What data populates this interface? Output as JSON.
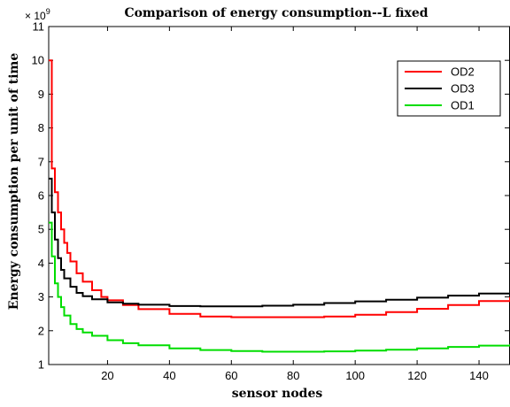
{
  "chart_data": {
    "type": "line",
    "title": "Comparison of energy consumption--L fixed",
    "xlabel": "sensor nodes",
    "ylabel": "Energy consumption per unit of time",
    "y_exponent_label": "× 10",
    "y_exponent_power": "9",
    "xlim": [
      1,
      150
    ],
    "ylim": [
      1,
      11
    ],
    "x_ticks": [
      20,
      40,
      60,
      80,
      100,
      120,
      140
    ],
    "x_tick_labels": [
      "20",
      "40",
      "60",
      "80",
      "100",
      "120",
      "140"
    ],
    "y_ticks": [
      1,
      2,
      3,
      4,
      5,
      6,
      7,
      8,
      9,
      10,
      11
    ],
    "y_tick_labels": [
      "1",
      "2",
      "3",
      "4",
      "5",
      "6",
      "7",
      "8",
      "9",
      "10",
      "11"
    ],
    "grid": false,
    "legend_position": "top-right",
    "series": [
      {
        "name": "OD2",
        "color": "#ff0000",
        "points": [
          [
            1,
            10.0
          ],
          [
            2,
            6.8
          ],
          [
            3,
            6.1
          ],
          [
            4,
            5.5
          ],
          [
            5,
            5.0
          ],
          [
            6,
            4.6
          ],
          [
            7,
            4.3
          ],
          [
            8,
            4.05
          ],
          [
            10,
            3.7
          ],
          [
            12,
            3.45
          ],
          [
            15,
            3.2
          ],
          [
            18,
            3.0
          ],
          [
            20,
            2.9
          ],
          [
            25,
            2.76
          ],
          [
            30,
            2.64
          ],
          [
            40,
            2.5
          ],
          [
            50,
            2.42
          ],
          [
            60,
            2.4
          ],
          [
            70,
            2.4
          ],
          [
            80,
            2.4
          ],
          [
            90,
            2.42
          ],
          [
            100,
            2.47
          ],
          [
            110,
            2.55
          ],
          [
            120,
            2.65
          ],
          [
            130,
            2.76
          ],
          [
            140,
            2.88
          ],
          [
            150,
            3.0
          ]
        ]
      },
      {
        "name": "OD3",
        "color": "#000000",
        "points": [
          [
            1,
            6.5
          ],
          [
            2,
            5.5
          ],
          [
            3,
            4.7
          ],
          [
            4,
            4.15
          ],
          [
            5,
            3.8
          ],
          [
            6,
            3.55
          ],
          [
            8,
            3.3
          ],
          [
            10,
            3.12
          ],
          [
            12,
            3.02
          ],
          [
            15,
            2.93
          ],
          [
            20,
            2.84
          ],
          [
            25,
            2.8
          ],
          [
            30,
            2.77
          ],
          [
            40,
            2.73
          ],
          [
            50,
            2.72
          ],
          [
            60,
            2.72
          ],
          [
            70,
            2.74
          ],
          [
            80,
            2.77
          ],
          [
            90,
            2.82
          ],
          [
            100,
            2.87
          ],
          [
            110,
            2.92
          ],
          [
            120,
            2.98
          ],
          [
            130,
            3.04
          ],
          [
            140,
            3.1
          ],
          [
            150,
            3.17
          ]
        ]
      },
      {
        "name": "OD1",
        "color": "#00dd00",
        "points": [
          [
            1,
            5.2
          ],
          [
            2,
            4.2
          ],
          [
            3,
            3.4
          ],
          [
            4,
            3.0
          ],
          [
            5,
            2.7
          ],
          [
            6,
            2.45
          ],
          [
            8,
            2.2
          ],
          [
            10,
            2.05
          ],
          [
            12,
            1.95
          ],
          [
            15,
            1.85
          ],
          [
            20,
            1.72
          ],
          [
            25,
            1.63
          ],
          [
            30,
            1.57
          ],
          [
            40,
            1.48
          ],
          [
            50,
            1.43
          ],
          [
            60,
            1.4
          ],
          [
            70,
            1.38
          ],
          [
            80,
            1.38
          ],
          [
            90,
            1.39
          ],
          [
            100,
            1.41
          ],
          [
            110,
            1.44
          ],
          [
            120,
            1.48
          ],
          [
            130,
            1.52
          ],
          [
            140,
            1.56
          ],
          [
            150,
            1.6
          ]
        ]
      }
    ]
  }
}
